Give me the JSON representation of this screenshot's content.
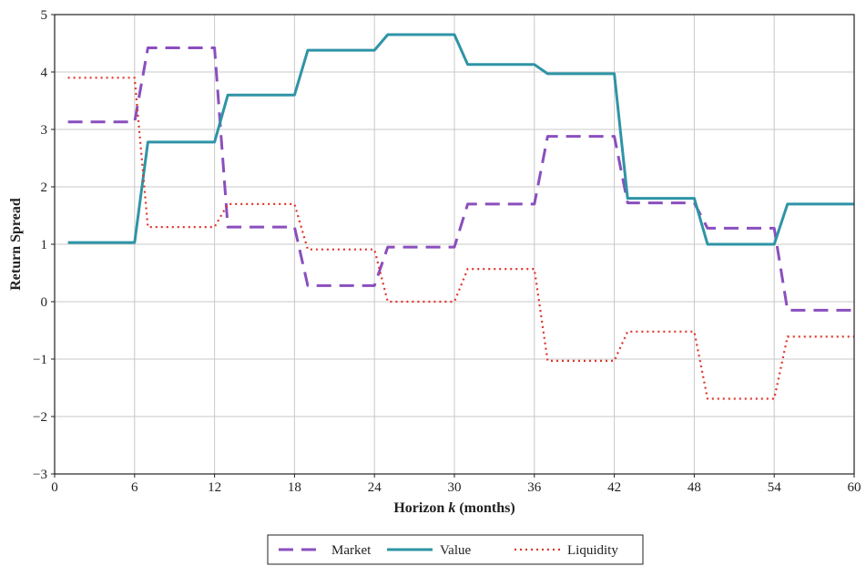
{
  "chart_data": {
    "type": "line",
    "title": "",
    "xlabel": "Horizon k (months)",
    "xlabel_parts": [
      "Horizon ",
      "k",
      " (months)"
    ],
    "ylabel": "Return Spread",
    "xlim": [
      0,
      60
    ],
    "ylim": [
      -3,
      5
    ],
    "xticks": [
      0,
      6,
      12,
      18,
      24,
      30,
      36,
      42,
      48,
      54,
      60
    ],
    "yticks": [
      -3,
      -2,
      -1,
      0,
      1,
      2,
      3,
      4,
      5
    ],
    "xtick_labels": [
      "0",
      "6",
      "12",
      "18",
      "24",
      "30",
      "36",
      "42",
      "48",
      "54",
      "60"
    ],
    "ytick_labels": [
      "−3",
      "−2",
      "−1",
      "0",
      "1",
      "2",
      "3",
      "4",
      "5"
    ],
    "grid": true,
    "legend_position": "bottom-center",
    "series": [
      {
        "name": "Market",
        "color": "#8a4fbe",
        "style": "dashed",
        "x": [
          1,
          6,
          7,
          12,
          13,
          18,
          19,
          24,
          25,
          30,
          31,
          36,
          37,
          42,
          43,
          48,
          49,
          54,
          55,
          60
        ],
        "y": [
          3.13,
          3.13,
          4.42,
          4.42,
          1.3,
          1.3,
          0.28,
          0.28,
          0.95,
          0.95,
          1.7,
          1.7,
          2.88,
          2.88,
          1.72,
          1.72,
          1.28,
          1.28,
          -0.15,
          -0.15
        ]
      },
      {
        "name": "Value",
        "color": "#2e94a6",
        "style": "solid",
        "x": [
          1,
          6,
          7,
          12,
          13,
          18,
          19,
          24,
          25,
          30,
          31,
          36,
          37,
          42,
          43,
          48,
          49,
          54,
          55,
          60
        ],
        "y": [
          1.03,
          1.03,
          2.78,
          2.78,
          3.6,
          3.6,
          4.38,
          4.38,
          4.65,
          4.65,
          4.13,
          4.13,
          3.97,
          3.97,
          1.8,
          1.8,
          1.0,
          1.0,
          1.7,
          1.7
        ]
      },
      {
        "name": "Liquidity",
        "color": "#e0352b",
        "style": "dotted",
        "x": [
          1,
          6,
          7,
          12,
          13,
          18,
          19,
          24,
          25,
          30,
          31,
          36,
          37,
          42,
          43,
          48,
          49,
          54,
          55,
          60
        ],
        "y": [
          3.9,
          3.9,
          1.3,
          1.3,
          1.7,
          1.7,
          0.91,
          0.91,
          0.0,
          0.0,
          0.57,
          0.57,
          -1.03,
          -1.03,
          -0.52,
          -0.52,
          -1.69,
          -1.69,
          -0.61,
          -0.61
        ]
      }
    ]
  }
}
